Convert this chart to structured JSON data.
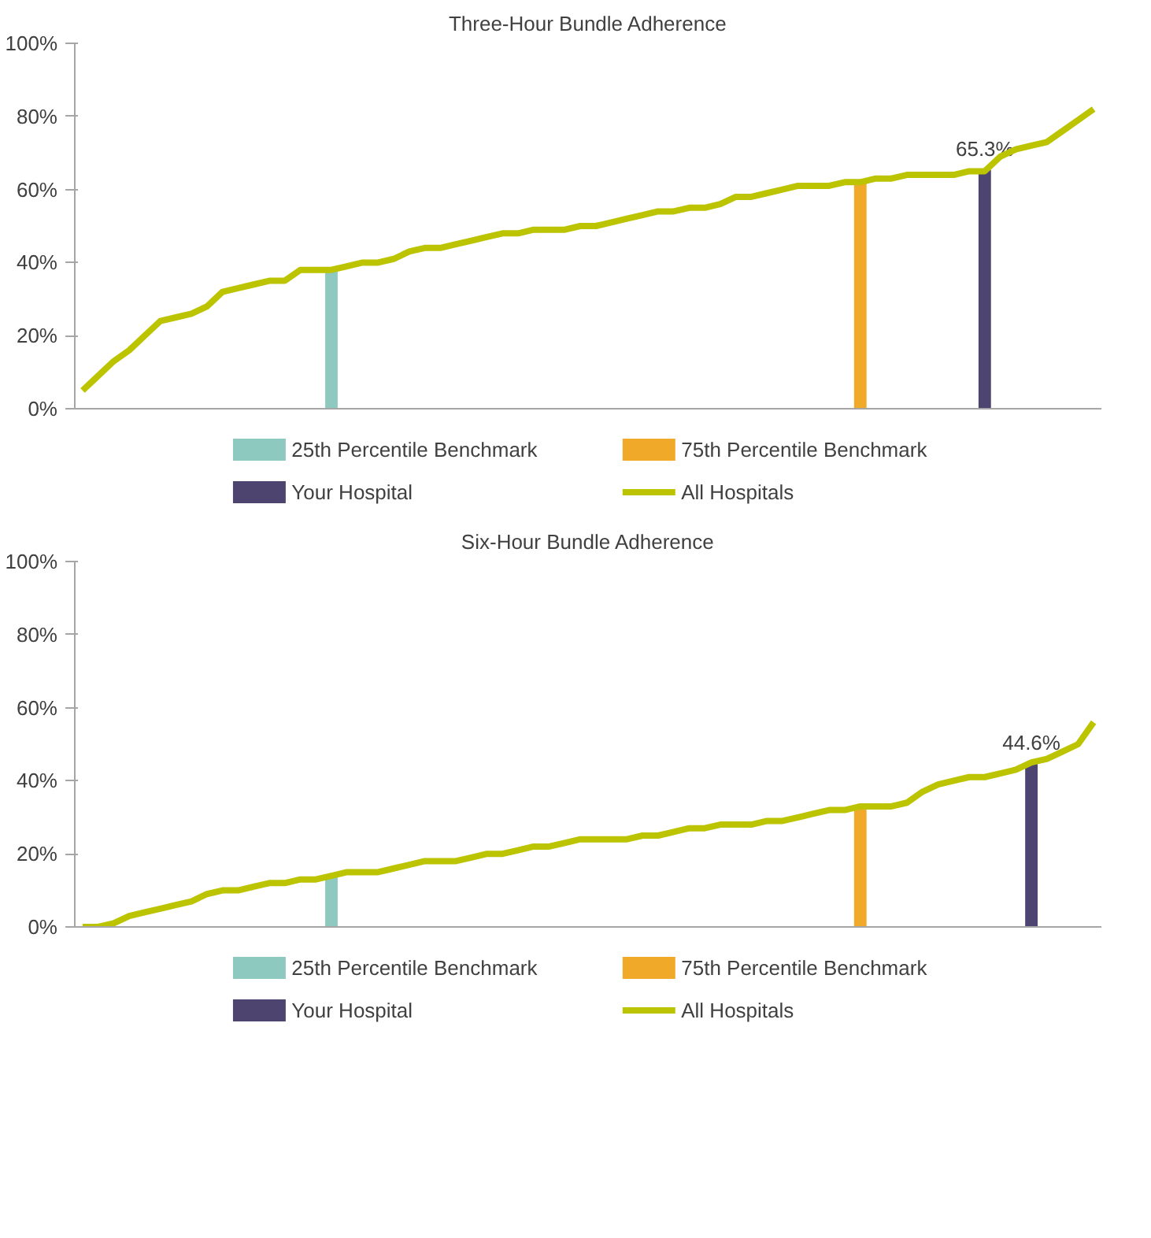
{
  "chart_data": [
    {
      "type": "bar",
      "title": "Three-Hour Bundle Adherence",
      "categories": [
        null,
        null,
        null,
        null,
        null,
        null,
        null,
        null,
        null,
        null,
        null,
        null,
        null,
        null,
        null,
        null,
        null,
        null,
        null,
        null,
        null,
        null,
        null,
        null,
        null,
        null,
        null,
        null,
        null,
        null,
        null,
        null,
        null,
        null,
        null,
        null,
        null,
        null,
        null,
        null,
        null,
        null,
        null,
        null,
        null,
        null,
        null,
        null,
        null,
        null,
        null,
        null,
        null,
        null,
        null,
        null,
        null,
        null,
        null,
        null,
        null,
        null,
        null,
        null,
        null,
        null
      ],
      "ylim": [
        0,
        100
      ],
      "yticks": [
        {
          "value": 0,
          "label": "0%"
        },
        {
          "value": 20,
          "label": "20%"
        },
        {
          "value": 40,
          "label": "40%"
        },
        {
          "value": 60,
          "label": "60%"
        },
        {
          "value": 80,
          "label": "80%"
        },
        {
          "value": 100,
          "label": "100%"
        }
      ],
      "grid": false,
      "legend": "bottom",
      "tick_labels": "y",
      "series": [
        {
          "name": "25th Percentile Benchmark",
          "color": "#8ec9c0",
          "values": [
            null,
            null,
            null,
            null,
            null,
            null,
            null,
            null,
            null,
            null,
            null,
            null,
            null,
            null,
            null,
            null,
            38,
            null,
            null,
            null,
            null,
            null,
            null,
            null,
            null,
            null,
            null,
            null,
            null,
            null,
            null,
            null,
            null,
            null,
            null,
            null,
            null,
            null,
            null,
            null,
            null,
            null,
            null,
            null,
            null,
            null,
            null,
            null,
            null,
            null,
            null,
            null,
            null,
            null,
            null,
            null,
            null,
            null,
            null,
            null,
            null,
            null,
            null,
            null,
            null,
            null
          ]
        },
        {
          "name": "75th Percentile Benchmark",
          "color": "#f0a928",
          "values": [
            null,
            null,
            null,
            null,
            null,
            null,
            null,
            null,
            null,
            null,
            null,
            null,
            null,
            null,
            null,
            null,
            null,
            null,
            null,
            null,
            null,
            null,
            null,
            null,
            null,
            null,
            null,
            null,
            null,
            null,
            null,
            null,
            null,
            null,
            null,
            null,
            null,
            null,
            null,
            null,
            null,
            null,
            null,
            null,
            null,
            null,
            null,
            null,
            null,
            null,
            62,
            null,
            null,
            null,
            null,
            null,
            null,
            null,
            null,
            null,
            null,
            null,
            null,
            null,
            null,
            null
          ]
        },
        {
          "name": "Your Hospital",
          "color": "#4e4470",
          "values": [
            null,
            null,
            null,
            null,
            null,
            null,
            null,
            null,
            null,
            null,
            null,
            null,
            null,
            null,
            null,
            null,
            null,
            null,
            null,
            null,
            null,
            null,
            null,
            null,
            null,
            null,
            null,
            null,
            null,
            null,
            null,
            null,
            null,
            null,
            null,
            null,
            null,
            null,
            null,
            null,
            null,
            null,
            null,
            null,
            null,
            null,
            null,
            null,
            null,
            null,
            null,
            null,
            null,
            null,
            null,
            null,
            null,
            null,
            65.3,
            null,
            null,
            null,
            null,
            null,
            null,
            null
          ],
          "value_labels": [
            null,
            null,
            null,
            null,
            null,
            null,
            null,
            null,
            null,
            null,
            null,
            null,
            null,
            null,
            null,
            null,
            null,
            null,
            null,
            null,
            null,
            null,
            null,
            null,
            null,
            null,
            null,
            null,
            null,
            null,
            null,
            null,
            null,
            null,
            null,
            null,
            null,
            null,
            null,
            null,
            null,
            null,
            null,
            null,
            null,
            null,
            null,
            null,
            null,
            null,
            null,
            null,
            null,
            null,
            null,
            null,
            null,
            null,
            "65.3%",
            null,
            null,
            null,
            null,
            null,
            null,
            null
          ]
        },
        {
          "name": "All Hospitals",
          "type": "line",
          "color": "#bcc400",
          "values": [
            5,
            9,
            13,
            16,
            20,
            24,
            25,
            26,
            28,
            32,
            33,
            34,
            35,
            35,
            38,
            38,
            38,
            39,
            40,
            40,
            41,
            43,
            44,
            44,
            45,
            46,
            47,
            48,
            48,
            49,
            49,
            49,
            50,
            50,
            51,
            52,
            53,
            54,
            54,
            55,
            55,
            56,
            58,
            58,
            59,
            60,
            61,
            61,
            61,
            62,
            62,
            63,
            63,
            64,
            64,
            64,
            64,
            65,
            65,
            69,
            71,
            72,
            73,
            76,
            79,
            82
          ]
        }
      ]
    },
    {
      "type": "bar",
      "title": "Six-Hour Bundle Adherence",
      "categories": [
        null,
        null,
        null,
        null,
        null,
        null,
        null,
        null,
        null,
        null,
        null,
        null,
        null,
        null,
        null,
        null,
        null,
        null,
        null,
        null,
        null,
        null,
        null,
        null,
        null,
        null,
        null,
        null,
        null,
        null,
        null,
        null,
        null,
        null,
        null,
        null,
        null,
        null,
        null,
        null,
        null,
        null,
        null,
        null,
        null,
        null,
        null,
        null,
        null,
        null,
        null,
        null,
        null,
        null,
        null,
        null,
        null,
        null,
        null,
        null,
        null,
        null,
        null,
        null,
        null,
        null
      ],
      "ylim": [
        0,
        100
      ],
      "yticks": [
        {
          "value": 0,
          "label": "0%"
        },
        {
          "value": 20,
          "label": "20%"
        },
        {
          "value": 40,
          "label": "40%"
        },
        {
          "value": 60,
          "label": "60%"
        },
        {
          "value": 80,
          "label": "80%"
        },
        {
          "value": 100,
          "label": "100%"
        }
      ],
      "grid": false,
      "legend": "bottom",
      "tick_labels": "y",
      "series": [
        {
          "name": "25th Percentile Benchmark",
          "color": "#8ec9c0",
          "values": [
            null,
            null,
            null,
            null,
            null,
            null,
            null,
            null,
            null,
            null,
            null,
            null,
            null,
            null,
            null,
            null,
            14,
            null,
            null,
            null,
            null,
            null,
            null,
            null,
            null,
            null,
            null,
            null,
            null,
            null,
            null,
            null,
            null,
            null,
            null,
            null,
            null,
            null,
            null,
            null,
            null,
            null,
            null,
            null,
            null,
            null,
            null,
            null,
            null,
            null,
            null,
            null,
            null,
            null,
            null,
            null,
            null,
            null,
            null,
            null,
            null,
            null,
            null,
            null,
            null,
            null
          ]
        },
        {
          "name": "75th Percentile Benchmark",
          "color": "#f0a928",
          "values": [
            null,
            null,
            null,
            null,
            null,
            null,
            null,
            null,
            null,
            null,
            null,
            null,
            null,
            null,
            null,
            null,
            null,
            null,
            null,
            null,
            null,
            null,
            null,
            null,
            null,
            null,
            null,
            null,
            null,
            null,
            null,
            null,
            null,
            null,
            null,
            null,
            null,
            null,
            null,
            null,
            null,
            null,
            null,
            null,
            null,
            null,
            null,
            null,
            null,
            null,
            32,
            null,
            null,
            null,
            null,
            null,
            null,
            null,
            null,
            null,
            null,
            null,
            null,
            null,
            null,
            null
          ]
        },
        {
          "name": "Your Hospital",
          "color": "#4e4470",
          "values": [
            null,
            null,
            null,
            null,
            null,
            null,
            null,
            null,
            null,
            null,
            null,
            null,
            null,
            null,
            null,
            null,
            null,
            null,
            null,
            null,
            null,
            null,
            null,
            null,
            null,
            null,
            null,
            null,
            null,
            null,
            null,
            null,
            null,
            null,
            null,
            null,
            null,
            null,
            null,
            null,
            null,
            null,
            null,
            null,
            null,
            null,
            null,
            null,
            null,
            null,
            null,
            null,
            null,
            null,
            null,
            null,
            null,
            null,
            null,
            null,
            null,
            44.6,
            null,
            null,
            null,
            null
          ],
          "value_labels": [
            null,
            null,
            null,
            null,
            null,
            null,
            null,
            null,
            null,
            null,
            null,
            null,
            null,
            null,
            null,
            null,
            null,
            null,
            null,
            null,
            null,
            null,
            null,
            null,
            null,
            null,
            null,
            null,
            null,
            null,
            null,
            null,
            null,
            null,
            null,
            null,
            null,
            null,
            null,
            null,
            null,
            null,
            null,
            null,
            null,
            null,
            null,
            null,
            null,
            null,
            null,
            null,
            null,
            null,
            null,
            null,
            null,
            null,
            null,
            null,
            null,
            "44.6%",
            null,
            null,
            null,
            null
          ]
        },
        {
          "name": "All Hospitals",
          "type": "line",
          "color": "#bcc400",
          "values": [
            0,
            0,
            1,
            3,
            4,
            5,
            6,
            7,
            9,
            10,
            10,
            11,
            12,
            12,
            13,
            13,
            14,
            15,
            15,
            15,
            16,
            17,
            18,
            18,
            18,
            19,
            20,
            20,
            21,
            22,
            22,
            23,
            24,
            24,
            24,
            24,
            25,
            25,
            26,
            27,
            27,
            28,
            28,
            28,
            29,
            29,
            30,
            31,
            32,
            32,
            33,
            33,
            33,
            34,
            37,
            39,
            40,
            41,
            41,
            42,
            43,
            45,
            46,
            48,
            50,
            56
          ]
        }
      ]
    }
  ]
}
